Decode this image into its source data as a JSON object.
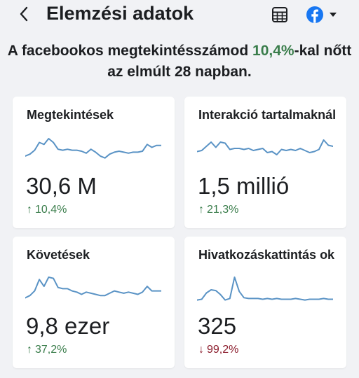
{
  "header": {
    "title": "Elemzési adatok",
    "back_icon": "chevron-left-icon",
    "table_icon": "table-icon",
    "platform_icon": "facebook-icon",
    "dropdown_icon": "caret-down-icon"
  },
  "headline": {
    "prefix": "A facebookos megtekintésszámod ",
    "value": "10,4%",
    "suffix": "-kal nőtt az elmúlt 28 napban."
  },
  "colors": {
    "accent_green": "#3a7d4b",
    "accent_red": "#8b1c2c",
    "sparkline": "#5a93c5",
    "facebook_blue": "#1877f2"
  },
  "cards": [
    {
      "label": "Megtekintések",
      "value": "30,6 M",
      "change_arrow": "↑",
      "change": "10,4%",
      "direction": "up",
      "trend": [
        8,
        10,
        14,
        22,
        20,
        26,
        22,
        15,
        14,
        15,
        14,
        14,
        13,
        11,
        15,
        12,
        8,
        6,
        10,
        12,
        13,
        12,
        11,
        12,
        12,
        13,
        20,
        17,
        19,
        19
      ]
    },
    {
      "label": "Interakció tartalmaknál",
      "value": "1,5 millió",
      "change_arrow": "↑",
      "change": "21,3%",
      "direction": "up",
      "trend": [
        13,
        14,
        18,
        22,
        17,
        22,
        21,
        15,
        16,
        16,
        15,
        16,
        14,
        15,
        16,
        12,
        13,
        10,
        15,
        14,
        15,
        14,
        16,
        14,
        12,
        13,
        15,
        24,
        19,
        18
      ]
    },
    {
      "label": "Követések",
      "value": "9,8 ezer",
      "change_arrow": "↑",
      "change": "37,2%",
      "direction": "up",
      "trend": [
        4,
        6,
        10,
        20,
        14,
        22,
        21,
        13,
        12,
        12,
        10,
        9,
        7,
        9,
        8,
        7,
        6,
        6,
        8,
        10,
        9,
        8,
        9,
        8,
        7,
        9,
        14,
        10,
        10,
        10
      ]
    },
    {
      "label": "Hivatkozáskattintás ok",
      "value": "325",
      "change_arrow": "↓",
      "change": "99,2%",
      "direction": "down",
      "trend": [
        3,
        4,
        12,
        16,
        15,
        10,
        3,
        5,
        32,
        14,
        6,
        5,
        5,
        5,
        4,
        5,
        4,
        5,
        4,
        4,
        4,
        5,
        4,
        3,
        4,
        4,
        4,
        5,
        4,
        4
      ]
    }
  ]
}
